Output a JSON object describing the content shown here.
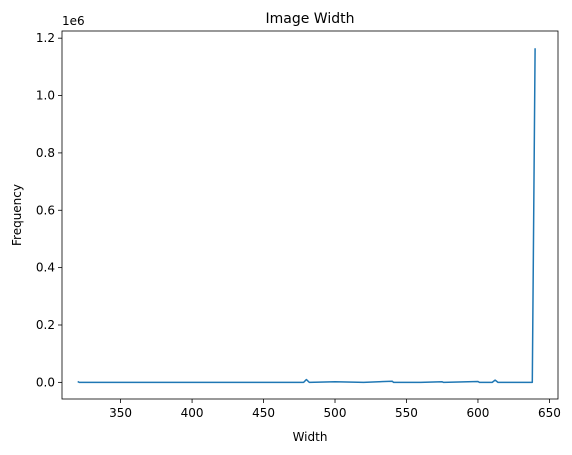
{
  "chart_data": {
    "type": "line",
    "title": "Image Width",
    "xlabel": "Width",
    "ylabel": "Frequency",
    "y_offset_label": "1e6",
    "xlim": [
      309,
      656
    ],
    "ylim": [
      -0.058,
      1.225
    ],
    "x_ticks": [
      350,
      400,
      450,
      500,
      550,
      600,
      650
    ],
    "x_tick_labels": [
      "350",
      "400",
      "450",
      "500",
      "550",
      "600",
      "650"
    ],
    "y_ticks": [
      0.0,
      0.2,
      0.4,
      0.6,
      0.8,
      1.0,
      1.2
    ],
    "y_tick_labels": [
      "0.0",
      "0.2",
      "0.4",
      "0.6",
      "0.8",
      "1.0",
      "1.2"
    ],
    "grid": false,
    "legend": "none",
    "series": [
      {
        "color": "#1f77b4",
        "x": [
          320,
          321,
          340,
          400,
          450,
          478,
          480,
          482,
          500,
          520,
          540,
          541,
          560,
          575,
          576,
          600,
          601,
          610,
          612,
          614,
          630,
          638,
          640
        ],
        "y": [
          0.003,
          0.0,
          0.0,
          0.0,
          0.0,
          0.0,
          0.01,
          0.0,
          0.002,
          0.0,
          0.004,
          0.0,
          0.0,
          0.002,
          0.0,
          0.003,
          0.0,
          0.0,
          0.008,
          0.0,
          0.0,
          0.0,
          1.165
        ]
      }
    ]
  }
}
